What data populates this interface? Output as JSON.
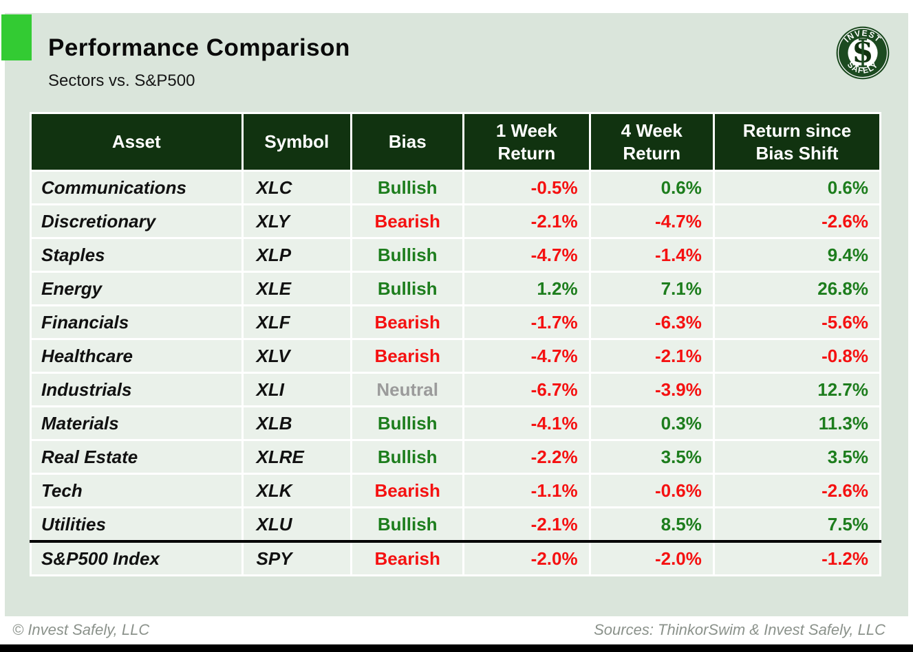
{
  "header": {
    "title": "Performance Comparison",
    "subtitle": "Sectors vs. S&P500"
  },
  "logo": {
    "arc_top": "INVEST",
    "arc_bottom": "SAFELY",
    "monogram": "S"
  },
  "table": {
    "columns": [
      {
        "id": "asset",
        "label": "Asset"
      },
      {
        "id": "symbol",
        "label": "Symbol"
      },
      {
        "id": "bias",
        "label": "Bias"
      },
      {
        "id": "week1-return",
        "label": "1 Week\nReturn"
      },
      {
        "id": "week4-return",
        "label": "4 Week\nReturn"
      },
      {
        "id": "return-since-bias-shift",
        "label": "Return since\nBias Shift"
      }
    ],
    "rows": [
      {
        "asset": "Communications",
        "symbol": "XLC",
        "bias": "Bullish",
        "week1": "-0.5%",
        "week4": "0.6%",
        "since_shift": "0.6%"
      },
      {
        "asset": "Discretionary",
        "symbol": "XLY",
        "bias": "Bearish",
        "week1": "-2.1%",
        "week4": "-4.7%",
        "since_shift": "-2.6%"
      },
      {
        "asset": "Staples",
        "symbol": "XLP",
        "bias": "Bullish",
        "week1": "-4.7%",
        "week4": "-1.4%",
        "since_shift": "9.4%"
      },
      {
        "asset": "Energy",
        "symbol": "XLE",
        "bias": "Bullish",
        "week1": "1.2%",
        "week4": "7.1%",
        "since_shift": "26.8%"
      },
      {
        "asset": "Financials",
        "symbol": "XLF",
        "bias": "Bearish",
        "week1": "-1.7%",
        "week4": "-6.3%",
        "since_shift": "-5.6%"
      },
      {
        "asset": "Healthcare",
        "symbol": "XLV",
        "bias": "Bearish",
        "week1": "-4.7%",
        "week4": "-2.1%",
        "since_shift": "-0.8%"
      },
      {
        "asset": "Industrials",
        "symbol": "XLI",
        "bias": "Neutral",
        "week1": "-6.7%",
        "week4": "-3.9%",
        "since_shift": "12.7%"
      },
      {
        "asset": "Materials",
        "symbol": "XLB",
        "bias": "Bullish",
        "week1": "-4.1%",
        "week4": "0.3%",
        "since_shift": "11.3%"
      },
      {
        "asset": "Real Estate",
        "symbol": "XLRE",
        "bias": "Bullish",
        "week1": "-2.2%",
        "week4": "3.5%",
        "since_shift": "3.5%"
      },
      {
        "asset": "Tech",
        "symbol": "XLK",
        "bias": "Bearish",
        "week1": "-1.1%",
        "week4": "-0.6%",
        "since_shift": "-2.6%"
      },
      {
        "asset": "Utilities",
        "symbol": "XLU",
        "bias": "Bullish",
        "week1": "-2.1%",
        "week4": "8.5%",
        "since_shift": "7.5%"
      },
      {
        "asset": "S&P500 Index",
        "symbol": "SPY",
        "bias": "Bearish",
        "week1": "-2.0%",
        "week4": "-2.0%",
        "since_shift": "-1.2%",
        "separator_above": true
      }
    ]
  },
  "footer": {
    "left": "© Invest Safely, LLC",
    "right": "Sources: ThinkorSwim & Invest Safely, LLC"
  },
  "colors": {
    "accent": "#33cb33",
    "slide_bg": "#dae5db",
    "row_bg": "#eaf1ea",
    "header_bg": "#113310",
    "bullish": "#1d7d1d",
    "bearish": "#f51111",
    "neutral": "#9b9b9b"
  }
}
